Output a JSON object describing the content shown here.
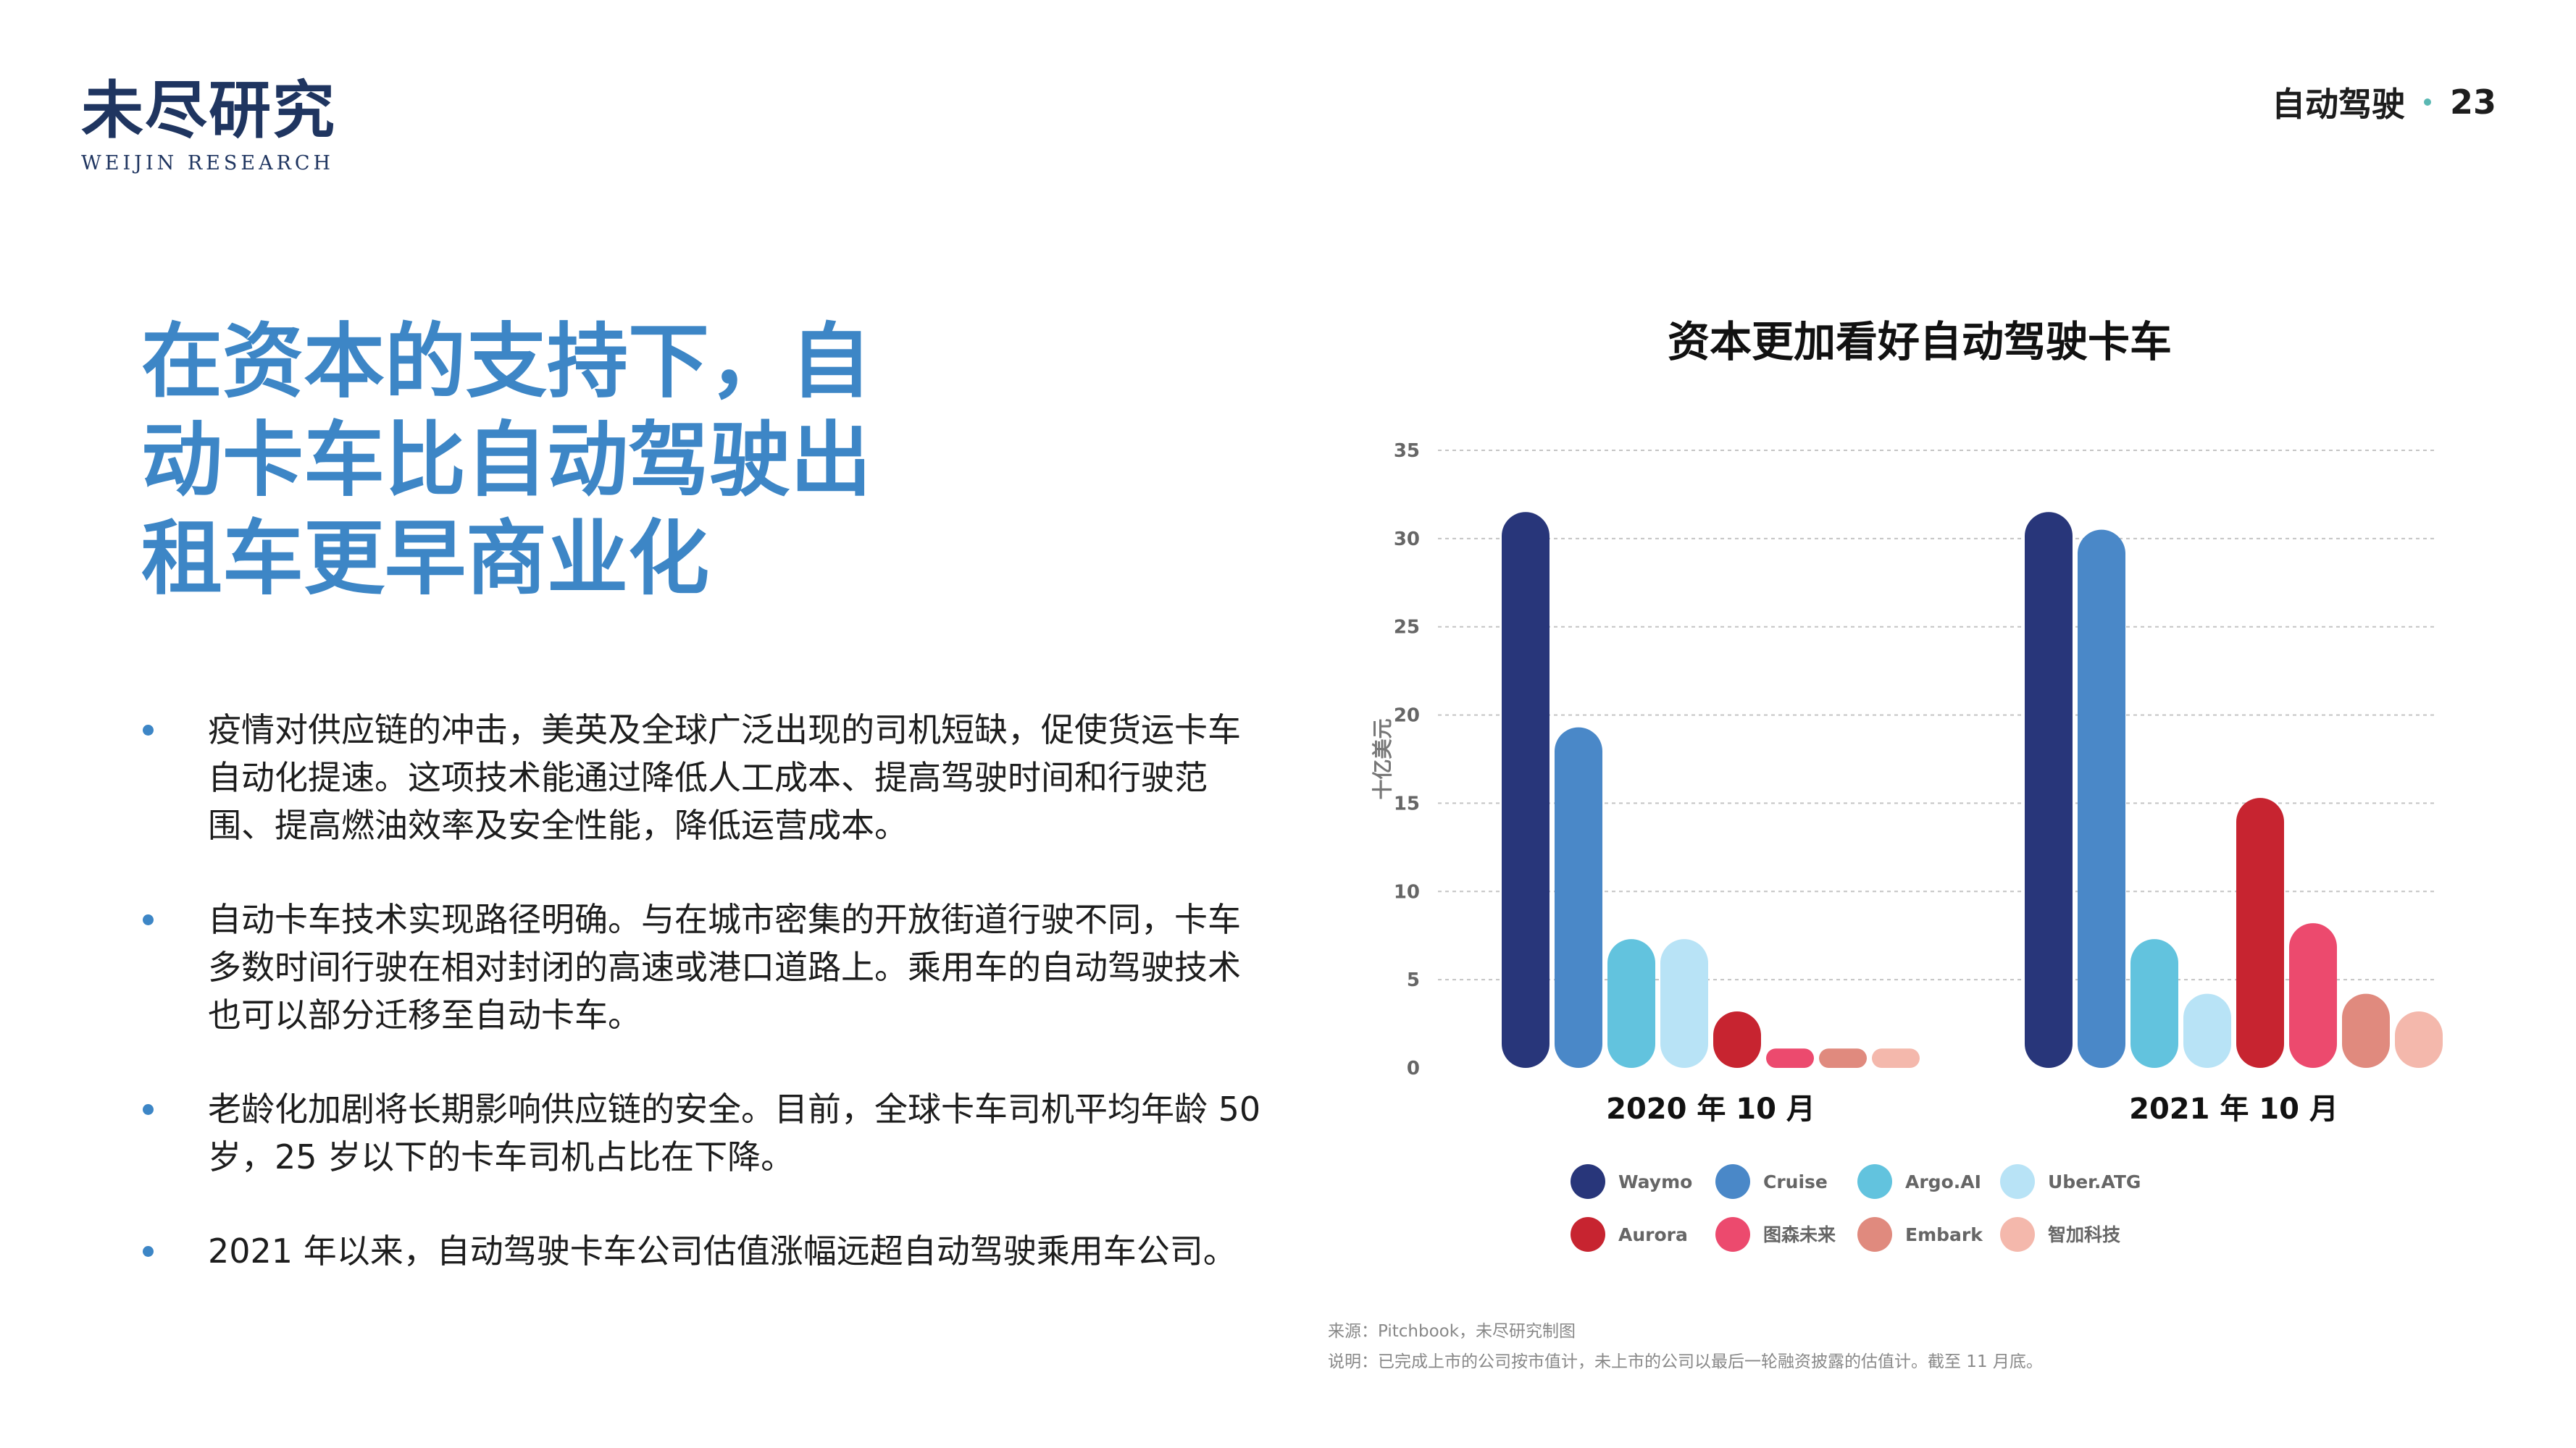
{
  "header": {
    "logo_cn": "未尽研究",
    "logo_en": "WEIJIN RESEARCH",
    "section": "自动驾驶",
    "page": "23"
  },
  "headline": {
    "lines": [
      "在资本的支持下，自",
      "动卡车比自动驾驶出",
      "租车更早商业化"
    ]
  },
  "bullets": [
    "疫情对供应链的冲击，美英及全球广泛出现的司机短缺，促使货运卡车自动化提速。这项技术能通过降低人工成本、提高驾驶时间和行驶范围、提高燃油效率及安全性能，降低运营成本。",
    "自动卡车技术实现路径明确。与在城市密集的开放街道行驶不同，卡车多数时间行驶在相对封闭的高速或港口道路上。乘用车的自动驾驶技术也可以部分迁移至自动卡车。",
    "老龄化加剧将长期影响供应链的安全。目前，全球卡车司机平均年龄 50 岁，25 岁以下的卡车司机占比在下降。",
    "2021 年以来，自动驾驶卡车公司估值涨幅远超自动驾驶乘用车公司。"
  ],
  "chart_data": {
    "type": "bar",
    "title": "资本更加看好自动驾驶卡车",
    "ylabel": "十亿美元",
    "ylim": [
      0,
      35
    ],
    "yticks": [
      0,
      5,
      10,
      15,
      20,
      25,
      30,
      35
    ],
    "grid": true,
    "legend_position": "bottom",
    "categories": [
      "2020 年 10 月",
      "2021 年 10 月"
    ],
    "series": [
      {
        "name": "Waymo",
        "color": "#28367a",
        "values": [
          31.5,
          31.5
        ]
      },
      {
        "name": "Cruise",
        "color": "#4a88c8",
        "values": [
          19.3,
          30.5
        ]
      },
      {
        "name": "Argo.AI",
        "color": "#62c3de",
        "values": [
          7.3,
          7.3
        ]
      },
      {
        "name": "Uber.ATG",
        "color": "#b8e3f6",
        "values": [
          7.3,
          4.2
        ]
      },
      {
        "name": "Aurora",
        "color": "#c72430",
        "values": [
          3.2,
          15.3
        ]
      },
      {
        "name": "图森未来",
        "color": "#ec4a6e",
        "values": [
          1.1,
          8.2
        ]
      },
      {
        "name": "Embark",
        "color": "#e08a7e",
        "values": [
          1.1,
          4.2
        ]
      },
      {
        "name": "智加科技",
        "color": "#f4b8ac",
        "values": [
          1.1,
          3.2
        ]
      }
    ]
  },
  "source_note": {
    "source": "来源：Pitchbook，未尽研究制图",
    "note": "说明：已完成上市的公司按市值计，未上市的公司以最后一轮融资披露的估值计。截至 11 月底。"
  }
}
